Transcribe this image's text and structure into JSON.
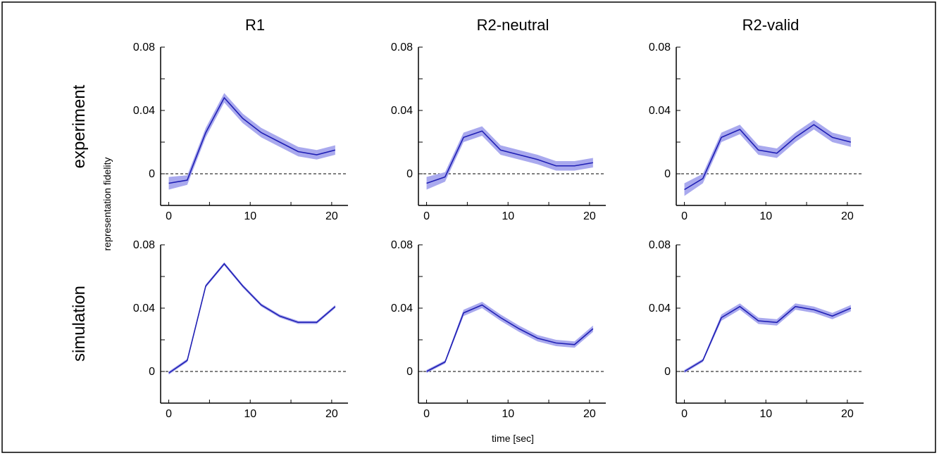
{
  "figure": {
    "column_titles": [
      "R1",
      "R2-neutral",
      "R2-valid"
    ],
    "row_labels": [
      "experiment",
      "simulation"
    ],
    "ylabel": "representation fidelity",
    "xlabel": "time [sec]"
  },
  "chart_data": [
    {
      "type": "line",
      "panel": "experiment-R1",
      "x": [
        0,
        2.27,
        4.54,
        6.81,
        9.08,
        11.35,
        13.62,
        15.89,
        18.16,
        20.43
      ],
      "series": [
        {
          "values": [
            -0.006,
            -0.004,
            0.026,
            0.048,
            0.035,
            0.026,
            0.02,
            0.014,
            0.012,
            0.015
          ]
        }
      ],
      "band": [
        0.004,
        0.003,
        0.003,
        0.003,
        0.003,
        0.003,
        0.003,
        0.003,
        0.003,
        0.003
      ],
      "xlim": [
        -1,
        22
      ],
      "ylim": [
        -0.02,
        0.08
      ],
      "xticks": [
        0,
        10,
        20
      ],
      "yticks": [
        0,
        0.04,
        0.08
      ]
    },
    {
      "type": "line",
      "panel": "experiment-R2-neutral",
      "x": [
        0,
        2.27,
        4.54,
        6.81,
        9.08,
        11.35,
        13.62,
        15.89,
        18.16,
        20.43
      ],
      "series": [
        {
          "values": [
            -0.006,
            -0.002,
            0.023,
            0.027,
            0.015,
            0.012,
            0.009,
            0.005,
            0.005,
            0.007
          ]
        }
      ],
      "band": [
        0.004,
        0.003,
        0.003,
        0.003,
        0.003,
        0.003,
        0.003,
        0.003,
        0.003,
        0.003
      ],
      "xlim": [
        -1,
        22
      ],
      "ylim": [
        -0.02,
        0.08
      ],
      "xticks": [
        0,
        10,
        20
      ],
      "yticks": [
        0,
        0.04,
        0.08
      ]
    },
    {
      "type": "line",
      "panel": "experiment-R2-valid",
      "x": [
        0,
        2.27,
        4.54,
        6.81,
        9.08,
        11.35,
        13.62,
        15.89,
        18.16,
        20.43
      ],
      "series": [
        {
          "values": [
            -0.01,
            -0.003,
            0.023,
            0.028,
            0.015,
            0.013,
            0.023,
            0.031,
            0.023,
            0.02
          ]
        }
      ],
      "band": [
        0.004,
        0.003,
        0.003,
        0.003,
        0.003,
        0.003,
        0.003,
        0.003,
        0.003,
        0.003
      ],
      "xlim": [
        -1,
        22
      ],
      "ylim": [
        -0.02,
        0.08
      ],
      "xticks": [
        0,
        10,
        20
      ],
      "yticks": [
        0,
        0.04,
        0.08
      ]
    },
    {
      "type": "line",
      "panel": "simulation-R1",
      "x": [
        0,
        2.27,
        4.54,
        6.81,
        9.08,
        11.35,
        13.62,
        15.89,
        18.16,
        20.43
      ],
      "series": [
        {
          "values": [
            -0.001,
            0.007,
            0.054,
            0.068,
            0.054,
            0.042,
            0.035,
            0.031,
            0.031,
            0.041
          ]
        }
      ],
      "band": [
        0.001,
        0.001,
        0.001,
        0.001,
        0.001,
        0.001,
        0.001,
        0.001,
        0.001,
        0.001
      ],
      "xlim": [
        -1,
        22
      ],
      "ylim": [
        -0.02,
        0.08
      ],
      "xticks": [
        0,
        10,
        20
      ],
      "yticks": [
        0,
        0.04,
        0.08
      ]
    },
    {
      "type": "line",
      "panel": "simulation-R2-neutral",
      "x": [
        0,
        2.27,
        4.54,
        6.81,
        9.08,
        11.35,
        13.62,
        15.89,
        18.16,
        20.43
      ],
      "series": [
        {
          "values": [
            0.0,
            0.006,
            0.037,
            0.042,
            0.034,
            0.027,
            0.021,
            0.018,
            0.017,
            0.027
          ]
        }
      ],
      "band": [
        0.001,
        0.001,
        0.002,
        0.002,
        0.002,
        0.002,
        0.002,
        0.002,
        0.002,
        0.002
      ],
      "xlim": [
        -1,
        22
      ],
      "ylim": [
        -0.02,
        0.08
      ],
      "xticks": [
        0,
        10,
        20
      ],
      "yticks": [
        0,
        0.04,
        0.08
      ]
    },
    {
      "type": "line",
      "panel": "simulation-R2-valid",
      "x": [
        0,
        2.27,
        4.54,
        6.81,
        9.08,
        11.35,
        13.62,
        15.89,
        18.16,
        20.43
      ],
      "series": [
        {
          "values": [
            0.0,
            0.007,
            0.034,
            0.041,
            0.032,
            0.031,
            0.041,
            0.039,
            0.035,
            0.04
          ]
        }
      ],
      "band": [
        0.001,
        0.001,
        0.002,
        0.002,
        0.002,
        0.002,
        0.002,
        0.002,
        0.002,
        0.002
      ],
      "xlim": [
        -1,
        22
      ],
      "ylim": [
        -0.02,
        0.08
      ],
      "xticks": [
        0,
        10,
        20
      ],
      "yticks": [
        0,
        0.04,
        0.08
      ]
    }
  ],
  "colors": {
    "line": "#1f1fb4",
    "band": "#a9a9ee",
    "axis": "#000000",
    "zero_line": "#000000"
  }
}
